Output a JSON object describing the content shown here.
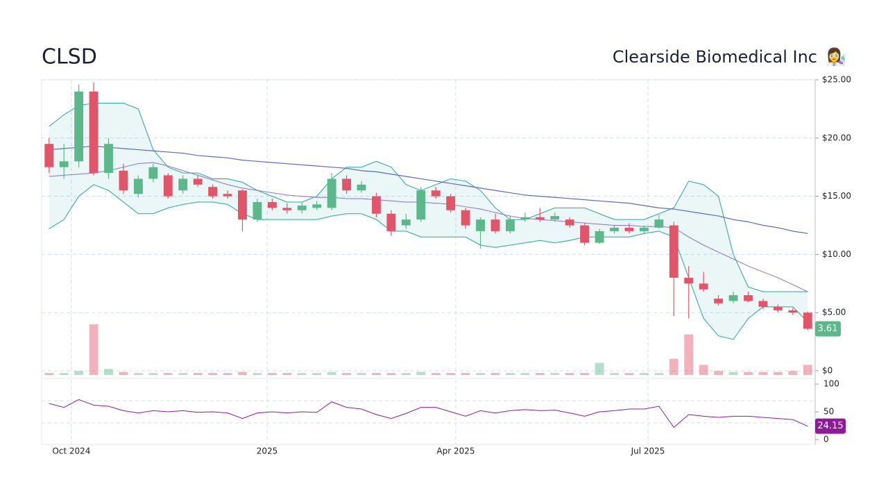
{
  "chart_data": {
    "type": "candlestick",
    "title": "CLSD",
    "subtitle": "Clearside Biomedical Inc",
    "icon": "👩‍🔬",
    "xlim": [
      -0.5,
      51.5
    ],
    "xticks": [
      {
        "value": 1.5,
        "label": "Oct 2024"
      },
      {
        "value": 14.66,
        "label": "2025"
      },
      {
        "value": 27.34,
        "label": "Apr 2025"
      },
      {
        "value": 40.26,
        "label": "Jul 2025"
      }
    ],
    "ylim": [
      0,
      25
    ],
    "yticks": [
      {
        "value": 0,
        "label": "$0"
      },
      {
        "value": 5,
        "label": "$5.00"
      },
      {
        "value": 10,
        "label": "$10.00"
      },
      {
        "value": 15,
        "label": "$15.00"
      },
      {
        "value": 20,
        "label": "$20.00"
      },
      {
        "value": 25,
        "label": "$25.00"
      }
    ],
    "grid": true,
    "up_color": "#5cb88a",
    "down_color": "#e0556a",
    "open": [
      19.5,
      17.5,
      18,
      24,
      17,
      17.2,
      15.2,
      16.5,
      16.8,
      15.5,
      16.5,
      15.8,
      15.2,
      15.5,
      13,
      14.5,
      14,
      13.8,
      14,
      14,
      16.5,
      15.5,
      15,
      13.5,
      12.5,
      13,
      15.5,
      15,
      13.8,
      12,
      13,
      12,
      13,
      13.2,
      13,
      13,
      12.5,
      11,
      12,
      12.3,
      12,
      12.3,
      12.5,
      8,
      7.5,
      6.2,
      6,
      6.5,
      6,
      5.5,
      5.2,
      5
    ],
    "high": [
      20,
      19.5,
      24.6,
      24.8,
      20,
      17.8,
      16.8,
      17.8,
      17,
      16.8,
      16.8,
      16,
      15.5,
      15.6,
      14.8,
      14.8,
      14.4,
      14.5,
      14.6,
      17,
      16.8,
      16.3,
      15.3,
      13.8,
      13.5,
      15.8,
      15.8,
      15.2,
      14,
      13.2,
      13.5,
      13.3,
      13.6,
      14,
      13.6,
      13.2,
      12.7,
      12.2,
      12.5,
      12.7,
      12.5,
      13.4,
      12.8,
      9,
      8.5,
      6.5,
      6.8,
      6.8,
      6.2,
      5.7,
      5.4,
      5.1
    ],
    "low": [
      17,
      16.5,
      17.5,
      16.8,
      16.5,
      15.2,
      14.9,
      16.2,
      14.8,
      15.2,
      15.8,
      14.8,
      14.8,
      12,
      12.8,
      13.8,
      13.5,
      13.5,
      13.8,
      13.8,
      15.2,
      15.3,
      13.2,
      11.6,
      12.2,
      12.8,
      14.8,
      13.6,
      12.2,
      10.5,
      11.8,
      11.8,
      12.8,
      12.8,
      12.8,
      12.3,
      10.8,
      10.9,
      11.8,
      11.8,
      11.8,
      12.2,
      4.7,
      4.5,
      6.8,
      5.6,
      5.8,
      5.9,
      5.3,
      5,
      4.8,
      3.5
    ],
    "close": [
      17.5,
      18,
      24,
      17,
      19.5,
      15.5,
      16.5,
      17.5,
      15,
      16.5,
      16,
      15,
      15,
      13,
      14.5,
      14,
      13.8,
      14.2,
      14.3,
      16.5,
      15.5,
      16,
      13.5,
      12,
      13,
      15.5,
      15,
      13.8,
      12.5,
      13,
      12,
      13,
      13.2,
      13,
      13.3,
      12.5,
      11,
      12,
      12.3,
      12,
      12.3,
      13,
      8,
      7.5,
      7,
      5.8,
      6.5,
      6,
      5.5,
      5.2,
      5,
      3.61
    ],
    "volume": [
      1,
      1,
      2,
      25,
      3,
      1.5,
      1,
      1,
      1,
      1,
      1,
      1,
      1,
      1.5,
      1,
      1,
      1,
      1,
      1,
      1.5,
      1,
      1,
      1,
      1,
      1,
      1.5,
      1,
      1,
      1,
      1,
      1,
      1,
      1,
      1,
      1,
      1,
      1,
      6,
      1,
      1,
      1,
      1,
      8,
      20,
      5,
      2,
      1.5,
      1.5,
      1.5,
      1.5,
      2,
      5
    ],
    "band_color": "#26a69a",
    "bb_upper": [
      21,
      22,
      22.8,
      23,
      23,
      23,
      22.5,
      19,
      17.5,
      17,
      17,
      16.5,
      16.5,
      16.2,
      15.5,
      15,
      14.5,
      14.5,
      15,
      16.5,
      17.5,
      17.5,
      18,
      17.5,
      16,
      15.5,
      16,
      16.5,
      16.3,
      15.5,
      14,
      13,
      13,
      13.5,
      14,
      14,
      14,
      13.5,
      13,
      13,
      13,
      13.5,
      14,
      16.3,
      16,
      15,
      10,
      7.2,
      6.8,
      6.8,
      6.8,
      6.8
    ],
    "bb_lower": [
      12.2,
      13,
      15,
      16,
      15.5,
      14.5,
      13.5,
      13.5,
      14,
      14.3,
      14.5,
      14.5,
      14.3,
      13.5,
      13,
      13,
      13,
      13,
      13,
      13.3,
      13.5,
      13.5,
      13,
      12,
      12,
      11.5,
      11.5,
      11.5,
      11.5,
      10.8,
      10.6,
      10.8,
      11,
      11.2,
      11,
      11.2,
      11.5,
      11.5,
      11.5,
      11.5,
      11.8,
      12,
      11.5,
      8,
      4.5,
      3,
      2.7,
      4.5,
      5.5,
      5.5,
      5.5,
      4.2
    ],
    "sma50_color": "#8a6fd1",
    "sma50": [
      16.7,
      16.8,
      16.9,
      17,
      17.2,
      17.5,
      17.8,
      17.9,
      17.6,
      17.2,
      16.8,
      16.4,
      16,
      15.7,
      15.5,
      15.3,
      15.1,
      15,
      14.9,
      14.9,
      14.8,
      14.8,
      14.7,
      14.6,
      14.5,
      14.5,
      14.4,
      14.3,
      14.1,
      13.9,
      13.6,
      13.3,
      13.1,
      13,
      12.9,
      12.8,
      12.7,
      12.6,
      12.5,
      12.5,
      12.4,
      12.4,
      12.3,
      11.5,
      10.8,
      10.2,
      9.6,
      9,
      8.5,
      8,
      7.4,
      6.8
    ],
    "sma200_color": "#5d6bc0",
    "sma200": [
      19,
      19.1,
      19.2,
      19.3,
      19.2,
      19.1,
      19,
      18.9,
      18.8,
      18.7,
      18.5,
      18.4,
      18.3,
      18.1,
      18,
      17.9,
      17.8,
      17.7,
      17.6,
      17.5,
      17.4,
      17.2,
      17.1,
      16.9,
      16.7,
      16.5,
      16.3,
      16.1,
      15.9,
      15.7,
      15.5,
      15.3,
      15.1,
      15,
      14.9,
      14.8,
      14.7,
      14.6,
      14.5,
      14.4,
      14.2,
      14,
      13.9,
      13.7,
      13.5,
      13.3,
      13,
      12.8,
      12.5,
      12.3,
      12,
      11.8
    ],
    "rsi": {
      "color": "#8e1a9a",
      "ylim": [
        0,
        100
      ],
      "yticks": [
        0,
        50,
        100
      ],
      "bands": [
        30,
        70
      ],
      "values": [
        65,
        58,
        72,
        62,
        60,
        52,
        48,
        52,
        50,
        52,
        49,
        50,
        48,
        38,
        48,
        50,
        48,
        50,
        49,
        68,
        58,
        55,
        45,
        38,
        47,
        58,
        58,
        50,
        42,
        52,
        48,
        52,
        54,
        52,
        53,
        48,
        42,
        50,
        52,
        55,
        55,
        60,
        22,
        45,
        42,
        40,
        42,
        42,
        40,
        38,
        36,
        24.15
      ]
    }
  }
}
